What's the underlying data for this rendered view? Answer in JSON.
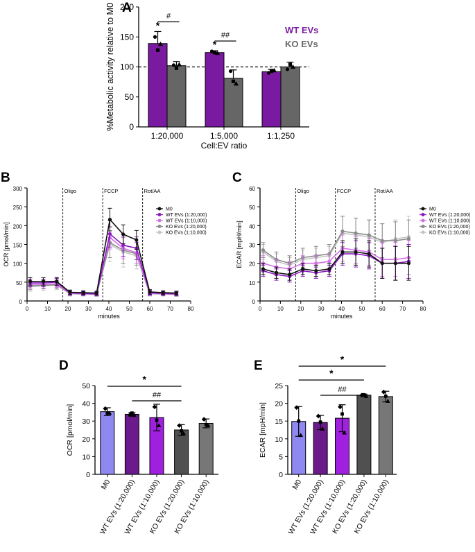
{
  "colors": {
    "wt": "#7a1aa0",
    "ko": "#666666",
    "m0": "#8f88f0",
    "wt20k": "#6a1a8a",
    "wt10k": "#a020e0",
    "ko20k": "#505050",
    "ko10k": "#777777",
    "line_m0": "#111111",
    "line_wt20k": "#8a1ac0",
    "line_wt10k": "#d470e8",
    "line_ko20k": "#8a8a8a",
    "line_ko10k": "#c4c4c4"
  },
  "panels": {
    "A": {
      "letter": "A",
      "legend_wt": "WT EVs",
      "legend_ko": "KO EVs"
    },
    "B": {
      "letter": "B"
    },
    "C": {
      "letter": "C"
    },
    "D": {
      "letter": "D"
    },
    "E": {
      "letter": "E"
    }
  },
  "chart_data": [
    {
      "panel": "A",
      "type": "bar",
      "ylabel": "%Metabolic activity relative to M0",
      "xlabel": "Cell:EV ratio",
      "ylim": [
        0,
        200
      ],
      "yticks": [
        0,
        50,
        100,
        150,
        200
      ],
      "reference_line": 100,
      "categories": [
        "1:20,000",
        "1:5,000",
        "1:1,250"
      ],
      "series": [
        {
          "name": "WT EVs",
          "values": [
            139,
            124,
            92
          ],
          "err": [
            20,
            3,
            4
          ],
          "points": [
            [
              150,
              128,
              138
            ],
            [
              126,
              124,
              123
            ],
            [
              90,
              93,
              94
            ]
          ]
        },
        {
          "name": "KO EVs",
          "values": [
            102,
            81,
            100
          ],
          "err": [
            7,
            14,
            8
          ],
          "points": [
            [
              103,
              98,
              104
            ],
            [
              93,
              76,
              72
            ],
            [
              96,
              104,
              100
            ]
          ]
        }
      ],
      "annotations": [
        {
          "text": "*",
          "category": 0,
          "series": 0
        },
        {
          "text": "#",
          "bracket": [
            0,
            0,
            0,
            1
          ]
        },
        {
          "text": "*",
          "category": 1,
          "series": 0
        },
        {
          "text": "##",
          "bracket": [
            1,
            0,
            1,
            1
          ]
        }
      ]
    },
    {
      "panel": "B",
      "type": "line",
      "ylabel": "OCR [pmol/min]",
      "xlabel": "minutes",
      "xlim": [
        0,
        80
      ],
      "ylim": [
        0,
        300
      ],
      "xticks": [
        0,
        10,
        20,
        30,
        40,
        50,
        60,
        70,
        80
      ],
      "yticks": [
        0,
        50,
        100,
        150,
        200,
        250,
        300
      ],
      "injections": [
        {
          "x": 17.5,
          "label": "Oligo"
        },
        {
          "x": 37,
          "label": "FCCP"
        },
        {
          "x": 56.5,
          "label": "Rot/AA"
        }
      ],
      "x": [
        1.5,
        8,
        14.5,
        21,
        27.5,
        34,
        40.5,
        47,
        53.5,
        60,
        66.5,
        73
      ],
      "series": [
        {
          "name": "M0",
          "values": [
            52,
            52,
            52,
            23,
            22,
            21,
            216,
            177,
            162,
            24,
            22,
            21
          ],
          "err": [
            10,
            10,
            10,
            6,
            5,
            5,
            30,
            25,
            25,
            6,
            5,
            5
          ]
        },
        {
          "name": "WT EVs (1:20,000)",
          "values": [
            48,
            48,
            50,
            22,
            20,
            19,
            178,
            148,
            140,
            22,
            20,
            19
          ],
          "err": [
            10,
            10,
            10,
            6,
            5,
            5,
            35,
            30,
            30,
            6,
            5,
            5
          ]
        },
        {
          "name": "WT EVs (1:10,000)",
          "values": [
            44,
            44,
            46,
            20,
            19,
            18,
            168,
            140,
            128,
            20,
            19,
            18
          ],
          "err": [
            10,
            10,
            10,
            6,
            5,
            5,
            30,
            28,
            28,
            6,
            5,
            5
          ]
        },
        {
          "name": "KO EVs (1:20,000)",
          "values": [
            40,
            42,
            43,
            20,
            19,
            18,
            155,
            135,
            125,
            20,
            19,
            18
          ],
          "err": [
            10,
            10,
            10,
            6,
            5,
            5,
            40,
            35,
            30,
            6,
            5,
            5
          ]
        },
        {
          "name": "KO EVs (1:10,000)",
          "values": [
            38,
            40,
            42,
            19,
            18,
            17,
            150,
            130,
            120,
            19,
            18,
            17
          ],
          "err": [
            12,
            12,
            12,
            6,
            5,
            5,
            45,
            40,
            35,
            6,
            5,
            5
          ]
        }
      ]
    },
    {
      "panel": "C",
      "type": "line",
      "ylabel": "ECAR [mpH/min]",
      "xlabel": "minutes",
      "xlim": [
        0,
        80
      ],
      "ylim": [
        0,
        60
      ],
      "xticks": [
        0,
        10,
        20,
        30,
        40,
        50,
        60,
        70,
        80
      ],
      "yticks": [
        0,
        10,
        20,
        30,
        40,
        50,
        60
      ],
      "injections": [
        {
          "x": 17.5,
          "label": "Oligo"
        },
        {
          "x": 37,
          "label": "FCCP"
        },
        {
          "x": 56.5,
          "label": "Rot/AA"
        }
      ],
      "x": [
        1.5,
        8,
        14.5,
        21,
        27.5,
        34,
        40.5,
        47,
        53.5,
        60,
        66.5,
        73
      ],
      "series": [
        {
          "name": "M0",
          "values": [
            17,
            15,
            14,
            17,
            16,
            17,
            26,
            26,
            25,
            20,
            20,
            20
          ],
          "err": [
            3,
            3,
            3,
            3,
            3,
            3,
            6,
            7,
            7,
            8,
            9,
            9
          ]
        },
        {
          "name": "WT EVs (1:20,000)",
          "values": [
            16,
            14,
            13,
            16,
            15,
            16,
            25,
            25,
            24,
            20,
            20,
            21
          ],
          "err": [
            3,
            3,
            3,
            3,
            3,
            3,
            6,
            7,
            7,
            8,
            9,
            9
          ]
        },
        {
          "name": "WT EVs (1:10,000)",
          "values": [
            20,
            18,
            17,
            20,
            20,
            21,
            28,
            27,
            26,
            22,
            22,
            23
          ],
          "err": [
            4,
            4,
            4,
            4,
            4,
            4,
            7,
            7,
            7,
            9,
            9,
            9
          ]
        },
        {
          "name": "KO EVs (1:20,000)",
          "values": [
            27,
            22,
            20,
            23,
            24,
            25,
            37,
            36,
            35,
            32,
            32,
            33
          ],
          "err": [
            4,
            4,
            4,
            5,
            5,
            5,
            8,
            8,
            8,
            9,
            10,
            10
          ]
        },
        {
          "name": "KO EVs (1:10,000)",
          "values": [
            26,
            21,
            19,
            22,
            23,
            24,
            36,
            35,
            34,
            31,
            33,
            34
          ],
          "err": [
            4,
            4,
            4,
            5,
            5,
            5,
            9,
            9,
            9,
            10,
            10,
            11
          ]
        }
      ]
    },
    {
      "panel": "D",
      "type": "bar",
      "ylabel": "OCR [pmol/min]",
      "ylim": [
        0,
        50
      ],
      "yticks": [
        0,
        10,
        20,
        30,
        40,
        50
      ],
      "categories": [
        "M0",
        "WT EVs (1:20,000)",
        "WT EVs (1:10,000)",
        "KO EVs (1:20,000)",
        "KO EVs (1:10,000)"
      ],
      "values": [
        35.3,
        33.8,
        32.0,
        25.0,
        28.7
      ],
      "err": [
        2.2,
        1.0,
        7.5,
        3.0,
        2.5
      ],
      "points": [
        [
          37,
          34.5,
          34.5
        ],
        [
          33.5,
          34.5,
          33.3
        ],
        [
          38,
          30.5,
          27.5
        ],
        [
          27.5,
          24.5,
          23
        ],
        [
          31,
          28,
          27.5
        ]
      ],
      "annotations": [
        {
          "text": "*",
          "from": 0,
          "to": 3
        },
        {
          "text": "##",
          "from": 1,
          "to": 3
        }
      ]
    },
    {
      "panel": "E",
      "type": "bar",
      "ylabel": "ECAR [mpH/min]",
      "ylim": [
        0,
        25
      ],
      "yticks": [
        0,
        5,
        10,
        15,
        20,
        25
      ],
      "categories": [
        "M0",
        "WT EVs (1:20,000)",
        "WT EVs (1:10,000)",
        "KO EVs (1:20,000)",
        "KO EVs (1:10,000)"
      ],
      "values": [
        14.9,
        14.6,
        15.8,
        22.3,
        21.9
      ],
      "err": [
        4.2,
        2.0,
        3.8,
        0.3,
        1.5
      ],
      "points": [
        [
          18.8,
          15,
          11
        ],
        [
          16.4,
          14.7,
          12.8
        ],
        [
          19,
          17,
          11.7
        ],
        [
          22.3,
          22.4,
          22
        ],
        [
          23.2,
          22,
          20.6
        ]
      ],
      "annotations": [
        {
          "text": "*",
          "from": 0,
          "to": 4
        },
        {
          "text": "*",
          "from": 0,
          "to": 3
        },
        {
          "text": "##",
          "from": 1,
          "to": 3
        }
      ]
    }
  ]
}
